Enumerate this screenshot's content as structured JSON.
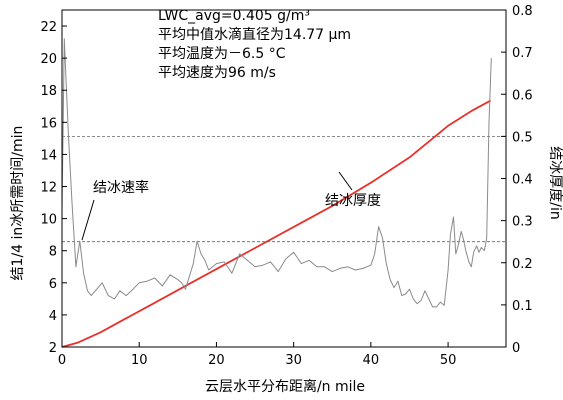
{
  "chart_data": {
    "type": "line",
    "xlabel": "云层水平分布距离/n mile",
    "ylabel_left": "结1/4 in冰所需时间/min",
    "ylabel_right": "结冰厚度/in",
    "xlim": [
      0,
      57.5
    ],
    "ylim_left": [
      2,
      23
    ],
    "ylim_right": [
      0,
      0.8
    ],
    "x_ticks": [
      0,
      10,
      20,
      30,
      40,
      50
    ],
    "y_left_ticks": [
      2,
      4,
      6,
      8,
      10,
      12,
      14,
      16,
      18,
      20,
      22
    ],
    "y_right_ticks": [
      0,
      0.1,
      0.2,
      0.3,
      0.4,
      0.5,
      0.6,
      0.7,
      0.8
    ],
    "grid": false,
    "legend": "none",
    "annotation_lines": [
      "LWC_avg=0.405 g/m³",
      "平均中值水滴直径为14.77 μm",
      "平均温度为－6.5 °C",
      "平均速度为96 m/s"
    ],
    "reference_lines": [
      {
        "axis": "right",
        "value": 0.5
      },
      {
        "axis": "right",
        "value": 0.25
      }
    ],
    "series": [
      {
        "name": "结冰厚度",
        "axis": "right",
        "color": "#e8312a",
        "x": [
          0,
          2,
          5,
          8,
          12,
          16,
          20,
          25,
          30,
          35,
          40,
          45,
          50,
          53,
          55.5
        ],
        "y": [
          0,
          0.01,
          0.035,
          0.065,
          0.105,
          0.145,
          0.185,
          0.235,
          0.285,
          0.335,
          0.39,
          0.45,
          0.525,
          0.56,
          0.585
        ]
      },
      {
        "name": "结冰速率",
        "axis": "left",
        "color": "#8a8a8a",
        "x": [
          0,
          0.3,
          0.8,
          1.3,
          1.8,
          2.3,
          2.8,
          3.3,
          3.8,
          4.5,
          5.2,
          6,
          6.8,
          7.5,
          8.3,
          9,
          10,
          11,
          12,
          13,
          14,
          15,
          15.5,
          16,
          16.5,
          17,
          17.5,
          18,
          18.5,
          19,
          20,
          21,
          22,
          23,
          24,
          25,
          26,
          27,
          28,
          29,
          30,
          31,
          32,
          33,
          34,
          35,
          36,
          37,
          38,
          39,
          40,
          40.5,
          41,
          41.5,
          42,
          42.5,
          43,
          43.5,
          44,
          44.5,
          45,
          45.5,
          46,
          46.5,
          47,
          47.5,
          48,
          48.5,
          49,
          49.5,
          50,
          50.3,
          50.7,
          51,
          51.3,
          51.7,
          52,
          52.3,
          52.7,
          53,
          53.3,
          53.7,
          54,
          54.3,
          54.7,
          55,
          55.3,
          55.6
        ],
        "y": [
          10.5,
          21.2,
          15.5,
          11.0,
          7.0,
          8.6,
          6.6,
          5.5,
          5.2,
          5.6,
          6.0,
          5.2,
          5.0,
          5.5,
          5.2,
          5.5,
          6.0,
          6.1,
          6.3,
          5.8,
          6.5,
          6.2,
          6.0,
          5.6,
          6.4,
          7.2,
          8.6,
          7.8,
          7.4,
          6.8,
          7.2,
          7.3,
          6.6,
          7.8,
          7.4,
          7.0,
          7.1,
          7.3,
          6.7,
          7.5,
          7.9,
          7.2,
          7.4,
          7.0,
          7.0,
          6.7,
          6.9,
          7.0,
          6.8,
          6.9,
          7.1,
          7.8,
          9.5,
          8.8,
          7.2,
          6.2,
          5.7,
          6.1,
          5.2,
          5.3,
          5.6,
          5.0,
          4.7,
          4.9,
          5.5,
          5.0,
          4.5,
          4.5,
          4.8,
          4.6,
          6.8,
          9.0,
          10.1,
          7.8,
          8.3,
          9.2,
          8.7,
          8.0,
          7.3,
          7.0,
          7.9,
          8.3,
          7.9,
          8.2,
          8.0,
          8.8,
          16.0,
          20.0
        ]
      }
    ]
  }
}
